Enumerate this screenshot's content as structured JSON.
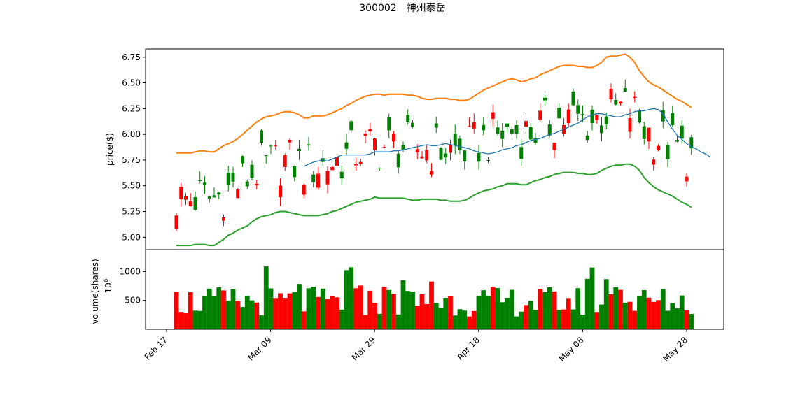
{
  "title": "300002　神州泰岳",
  "chart_data": [
    {
      "type": "candlestick",
      "ylabel": "price($)",
      "ylim": [
        4.88,
        6.83
      ],
      "yticks": [
        "5.00",
        "5.25",
        "5.50",
        "5.75",
        "6.00",
        "6.25",
        "6.50",
        "6.75"
      ],
      "colors": {
        "up": "#ff0000",
        "down": "#008000"
      },
      "series": [
        {
          "name": "",
          "color": "#1f77b4",
          "values": [
            null,
            null,
            null,
            null,
            null,
            null,
            null,
            null,
            null,
            null,
            null,
            null,
            null,
            null,
            null,
            null,
            null,
            null,
            null,
            null,
            null,
            null,
            null,
            null,
            null,
            null,
            null,
            5.69,
            5.71,
            5.73,
            5.74,
            5.75,
            5.74,
            5.76,
            5.78,
            5.8,
            5.8,
            5.8,
            5.8,
            5.8,
            5.8,
            5.81,
            5.83,
            5.83,
            5.83,
            5.83,
            5.84,
            5.84,
            5.85,
            5.86,
            5.87,
            5.88,
            5.89,
            5.9,
            5.89,
            5.89,
            5.9,
            5.91,
            5.9,
            5.89,
            5.88,
            5.87,
            5.86,
            5.84,
            5.83,
            5.82,
            5.81,
            5.82,
            5.83,
            5.85,
            5.86,
            5.87,
            5.89,
            5.9,
            5.92,
            5.94,
            5.95,
            5.96,
            5.98,
            6.0,
            6.01,
            6.03,
            6.05,
            6.07,
            6.09,
            6.11,
            6.14,
            6.17,
            6.19,
            6.2,
            6.2,
            6.19,
            6.18,
            6.17,
            6.17,
            6.19,
            6.2,
            6.22,
            6.23,
            6.23,
            6.24,
            6.25,
            6.24,
            6.2,
            6.12,
            6.05,
            5.99,
            5.95,
            5.91,
            5.88,
            5.86,
            5.83,
            5.81,
            5.78
          ]
        },
        {
          "name": "",
          "color": "#ff7f0e",
          "values": [
            5.82,
            5.82,
            5.82,
            5.82,
            5.83,
            5.84,
            5.84,
            5.83,
            5.83,
            5.86,
            5.89,
            5.91,
            5.93,
            5.96,
            6.0,
            6.04,
            6.08,
            6.12,
            6.15,
            6.17,
            6.18,
            6.19,
            6.21,
            6.22,
            6.22,
            6.21,
            6.19,
            6.16,
            6.16,
            6.18,
            6.18,
            6.18,
            6.19,
            6.21,
            6.23,
            6.25,
            6.28,
            6.3,
            6.33,
            6.35,
            6.37,
            6.38,
            6.39,
            6.39,
            6.38,
            6.39,
            6.39,
            6.39,
            6.39,
            6.38,
            6.38,
            6.37,
            6.35,
            6.34,
            6.34,
            6.35,
            6.35,
            6.35,
            6.34,
            6.34,
            6.33,
            6.33,
            6.34,
            6.37,
            6.4,
            6.43,
            6.45,
            6.47,
            6.49,
            6.51,
            6.53,
            6.54,
            6.53,
            6.51,
            6.52,
            6.54,
            6.55,
            6.58,
            6.6,
            6.62,
            6.64,
            6.66,
            6.67,
            6.67,
            6.67,
            6.66,
            6.66,
            6.65,
            6.65,
            6.67,
            6.7,
            6.75,
            6.76,
            6.76,
            6.77,
            6.78,
            6.75,
            6.7,
            6.62,
            6.56,
            6.51,
            6.48,
            6.46,
            6.43,
            6.4,
            6.37,
            6.34,
            6.32,
            6.29,
            6.26
          ]
        },
        {
          "name": "",
          "color": "#2ca02c",
          "values": [
            4.92,
            4.92,
            4.92,
            4.92,
            4.93,
            4.93,
            4.93,
            4.92,
            4.92,
            4.95,
            4.98,
            5.02,
            5.04,
            5.07,
            5.09,
            5.11,
            5.15,
            5.18,
            5.2,
            5.21,
            5.22,
            5.24,
            5.25,
            5.25,
            5.24,
            5.23,
            5.22,
            5.21,
            5.21,
            5.21,
            5.21,
            5.22,
            5.23,
            5.25,
            5.26,
            5.28,
            5.3,
            5.32,
            5.34,
            5.35,
            5.36,
            5.37,
            5.39,
            5.38,
            5.38,
            5.38,
            5.38,
            5.38,
            5.38,
            5.37,
            5.36,
            5.36,
            5.37,
            5.37,
            5.37,
            5.37,
            5.36,
            5.36,
            5.35,
            5.35,
            5.35,
            5.36,
            5.38,
            5.41,
            5.43,
            5.45,
            5.46,
            5.47,
            5.49,
            5.5,
            5.52,
            5.52,
            5.52,
            5.51,
            5.51,
            5.53,
            5.55,
            5.56,
            5.58,
            5.59,
            5.61,
            5.62,
            5.63,
            5.63,
            5.63,
            5.62,
            5.62,
            5.61,
            5.61,
            5.62,
            5.65,
            5.67,
            5.69,
            5.7,
            5.7,
            5.71,
            5.71,
            5.69,
            5.65,
            5.58,
            5.53,
            5.49,
            5.46,
            5.44,
            5.42,
            5.4,
            5.37,
            5.34,
            5.32,
            5.29
          ]
        }
      ]
    },
    {
      "type": "bar",
      "ylabel": "volume(shares)",
      "yscale_label": "10",
      "yscale_exp": "6",
      "ylim": [
        0,
        1380
      ],
      "yticks": [
        "500",
        "1000"
      ],
      "categories": [
        "Feb 17",
        "Mar 09",
        "Mar 29",
        "Apr 18",
        "May 08",
        "May 28"
      ]
    }
  ]
}
